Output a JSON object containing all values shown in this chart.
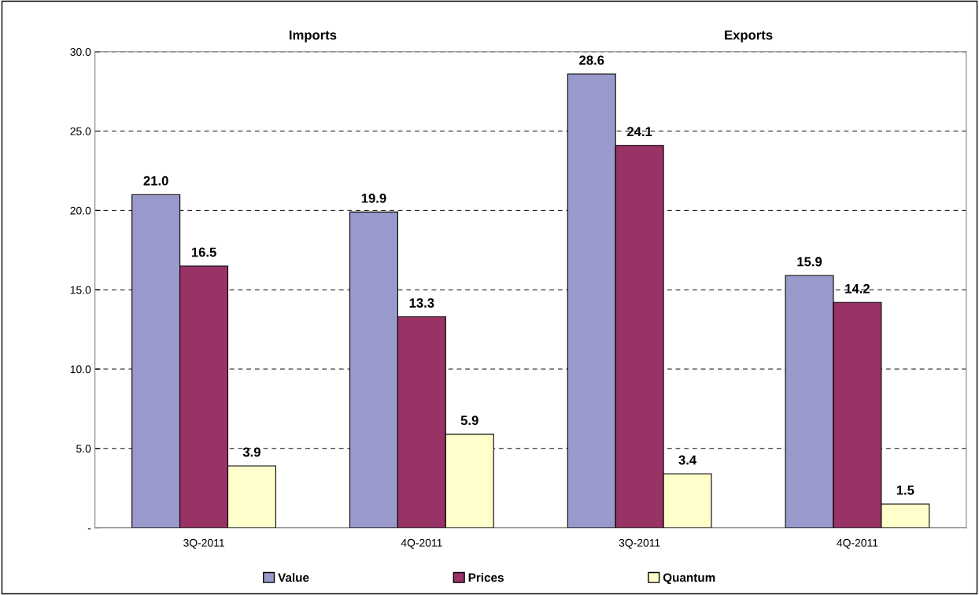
{
  "chart_data": {
    "type": "bar",
    "categories": [
      "3Q-2011",
      "4Q-2011",
      "3Q-2011",
      "4Q-2011"
    ],
    "series": [
      {
        "name": "Value",
        "color": "#9999cc",
        "values": [
          21.0,
          19.9,
          28.6,
          15.9
        ],
        "value_labels": [
          "21.0",
          "19.9",
          "28.6",
          "15.9"
        ]
      },
      {
        "name": "Prices",
        "color": "#993366",
        "values": [
          16.5,
          13.3,
          24.1,
          14.2
        ],
        "value_labels": [
          "16.5",
          "13.3",
          "24.1",
          "14.2"
        ]
      },
      {
        "name": "Quantum",
        "color": "#ffffcc",
        "values": [
          3.9,
          5.9,
          3.4,
          1.5
        ],
        "value_labels": [
          "3.9",
          "5.9",
          "3.4",
          "1.5"
        ]
      }
    ],
    "annotations": [
      "Imports",
      "Exports"
    ],
    "ylim": [
      0,
      30
    ],
    "yticks": [
      {
        "value": 0,
        "label": "-"
      },
      {
        "value": 5,
        "label": "5.0"
      },
      {
        "value": 10,
        "label": "10.0"
      },
      {
        "value": 15,
        "label": "15.0"
      },
      {
        "value": 20,
        "label": "20.0"
      },
      {
        "value": 25,
        "label": "25.0"
      },
      {
        "value": 30,
        "label": "30.0"
      }
    ],
    "grid": "y",
    "legend": "bottom"
  }
}
